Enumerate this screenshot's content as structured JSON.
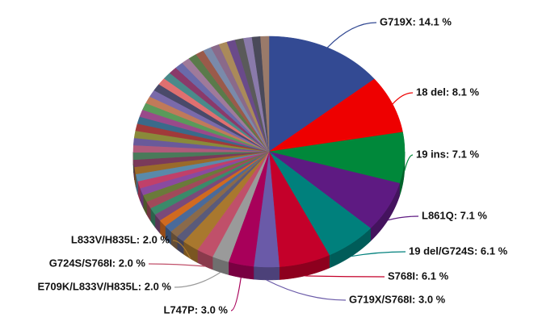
{
  "chart_data": {
    "type": "pie3d",
    "values": [
      14.1,
      8.1,
      7.1,
      7.1,
      6.1,
      6.1,
      3.0,
      3.0,
      2.0,
      2.0,
      2.0,
      1,
      1,
      1,
      1,
      1,
      1,
      1,
      1,
      1,
      1,
      1,
      1,
      1,
      1,
      1,
      1,
      1,
      1,
      1,
      1,
      1,
      1,
      1,
      1,
      1,
      1,
      1,
      1,
      1,
      1,
      1,
      1,
      1,
      1,
      1,
      1,
      1,
      1,
      1
    ],
    "value_labels": [
      "G719X: 14.1 %",
      "18 del: 8.1 %",
      "19 ins: 7.1 %",
      "L861Q: 7.1 %",
      "19 del/G724S: 6.1 %",
      "S768I: 6.1 %",
      "G719X/S768I: 3.0 %",
      "L747P: 3.0 %",
      "E709K/L833V/H835L: 2.0 %",
      "G724S/S768I: 2.0 %",
      "L833V/H835L: 2.0 %",
      null,
      null,
      null,
      null,
      null,
      null,
      null,
      null,
      null,
      null,
      null,
      null,
      null,
      null,
      null,
      null,
      null,
      null,
      null,
      null,
      null,
      null,
      null,
      null,
      null,
      null,
      null,
      null,
      null,
      null,
      null,
      null,
      null,
      null,
      null,
      null,
      null,
      null,
      null
    ],
    "colors": [
      "#334a93",
      "#ee0000",
      "#00883a",
      "#5e1a82",
      "#00807c",
      "#c4002a",
      "#6a5aa8",
      "#a8005a",
      "#9a9a9a",
      "#c0506a",
      "#a9782e",
      "#5a5a7a",
      "#8a6a4a",
      "#4a6a9a",
      "#d06a20",
      "#7a4a7a",
      "#3a8a6a",
      "#a04a5a",
      "#6a7a3a",
      "#8a4aa0",
      "#c0406a",
      "#5a8aaa",
      "#9a6a2a",
      "#7a3a5a",
      "#4a7a5a",
      "#b05a7a",
      "#6a5a9a",
      "#8a8a3a",
      "#a03a3a",
      "#3a6a8a",
      "#9a4a8a",
      "#5a9a5a",
      "#c07a5a",
      "#7a6aaa",
      "#4a4a6a",
      "#e07070",
      "#4a8a8a",
      "#8a3a6a",
      "#6a6aaa",
      "#a07a9a",
      "#5a7a4a",
      "#9a5a4a",
      "#7a8aaa",
      "#8a6a8a",
      "#aa8a5a",
      "#6a4a8a",
      "#5a5a5a",
      "#8a7aaa",
      "#4a4a5a",
      "#9a7a6a"
    ]
  }
}
